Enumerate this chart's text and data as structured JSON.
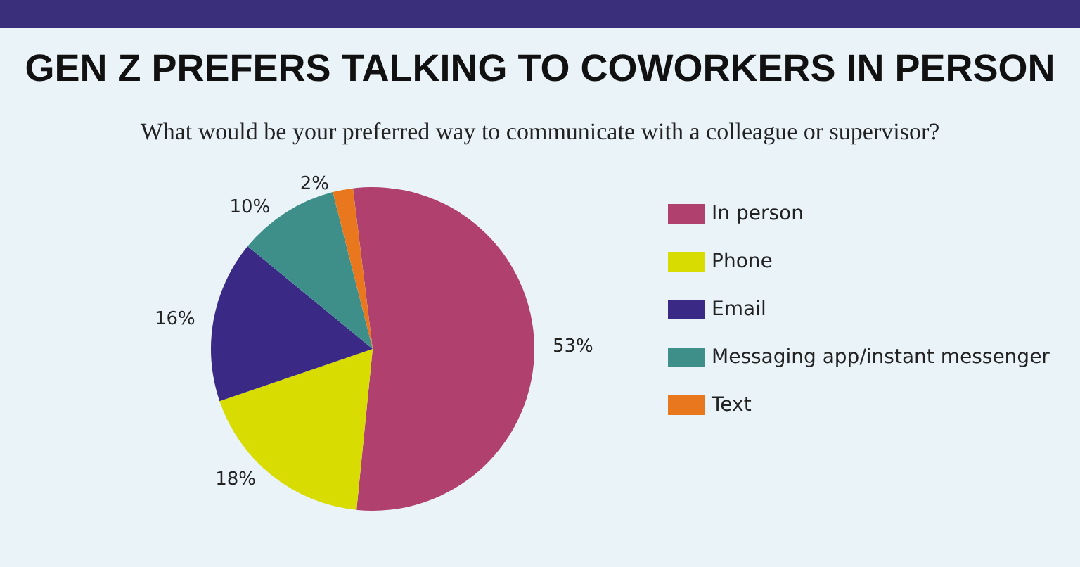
{
  "chart_data": {
    "type": "pie",
    "title": "GEN Z PREFERS TALKING TO COWORKERS IN PERSON",
    "subtitle": "What would be your preferred way to communicate with a colleague or supervisor?",
    "categories": [
      "In person",
      "Phone",
      "Email",
      "Messaging app/instant messenger",
      "Text"
    ],
    "values": [
      53,
      18,
      16,
      10,
      2
    ],
    "value_labels": [
      "53%",
      "18%",
      "16%",
      "10%",
      "2%"
    ],
    "colors": [
      "#b0406e",
      "#d9dc00",
      "#3b2a85",
      "#3e8f8a",
      "#e8771e"
    ],
    "legend": "right"
  }
}
